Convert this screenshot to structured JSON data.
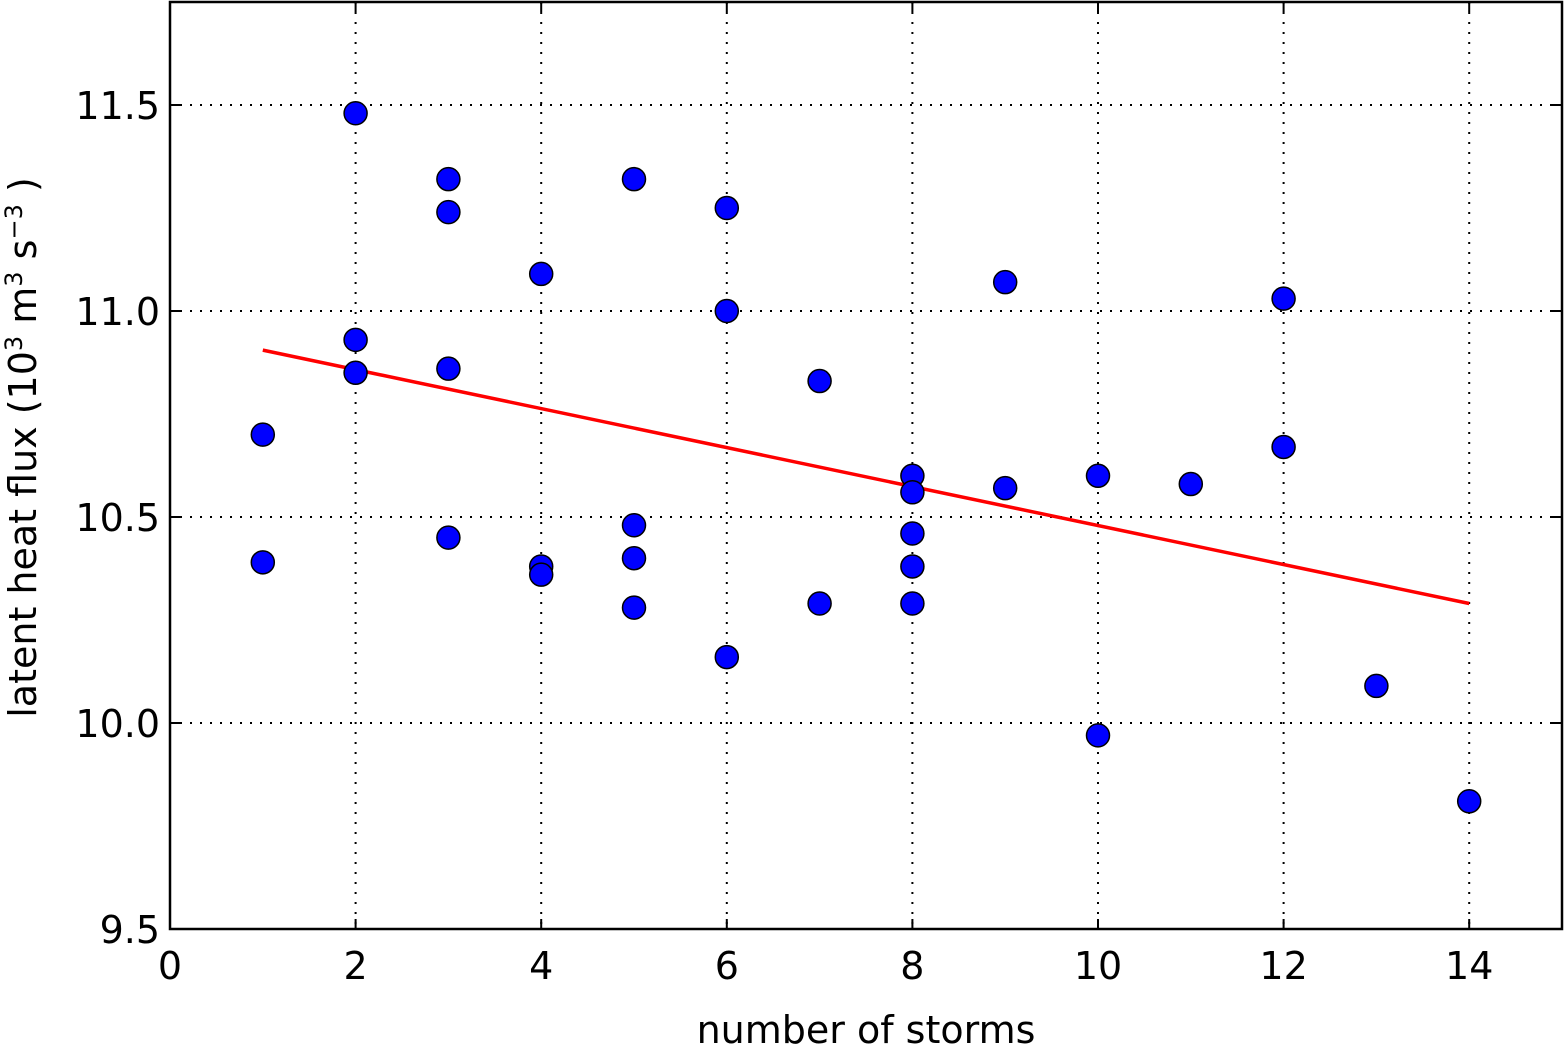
{
  "chart_data": {
    "type": "scatter",
    "title": "",
    "xlabel": "number of storms",
    "ylabel": {
      "prefix": "latent heat flux (10",
      "exp1": "3",
      "middle": "  m",
      "exp2": "3",
      "middle2": "  s",
      "exp3": "−3",
      "suffix": " )"
    },
    "xlim": [
      0,
      15
    ],
    "ylim": [
      9.5,
      11.75
    ],
    "xticks": [
      0,
      2,
      4,
      6,
      8,
      10,
      12,
      14
    ],
    "xtick_labels": [
      "0",
      "2",
      "4",
      "6",
      "8",
      "10",
      "12",
      "14"
    ],
    "yticks": [
      9.5,
      10.0,
      10.5,
      11.0,
      11.5
    ],
    "ytick_labels": [
      "9.5",
      "10.0",
      "10.5",
      "11.0",
      "11.5"
    ],
    "grid": true,
    "series": [
      {
        "kind": "scatter",
        "color": "#0000ff",
        "edgecolor": "#000000",
        "points": [
          [
            1,
            10.7
          ],
          [
            1,
            10.39
          ],
          [
            2,
            11.48
          ],
          [
            2,
            10.93
          ],
          [
            2,
            10.85
          ],
          [
            3,
            11.32
          ],
          [
            3,
            11.24
          ],
          [
            3,
            10.86
          ],
          [
            3,
            10.45
          ],
          [
            4,
            11.09
          ],
          [
            4,
            10.38
          ],
          [
            4,
            10.36
          ],
          [
            5,
            11.32
          ],
          [
            5,
            10.48
          ],
          [
            5,
            10.4
          ],
          [
            5,
            10.28
          ],
          [
            6,
            11.25
          ],
          [
            6,
            11.0
          ],
          [
            6,
            10.16
          ],
          [
            7,
            10.83
          ],
          [
            7,
            10.29
          ],
          [
            8,
            10.6
          ],
          [
            8,
            10.56
          ],
          [
            8,
            10.46
          ],
          [
            8,
            10.38
          ],
          [
            8,
            10.29
          ],
          [
            9,
            11.07
          ],
          [
            9,
            10.57
          ],
          [
            10,
            10.6
          ],
          [
            10,
            9.97
          ],
          [
            11,
            10.58
          ],
          [
            12,
            11.03
          ],
          [
            12,
            10.67
          ],
          [
            13,
            10.09
          ],
          [
            14,
            9.81
          ]
        ]
      },
      {
        "kind": "line",
        "color": "#ff0000",
        "points": [
          [
            1,
            10.905
          ],
          [
            14,
            10.29
          ]
        ]
      }
    ]
  }
}
